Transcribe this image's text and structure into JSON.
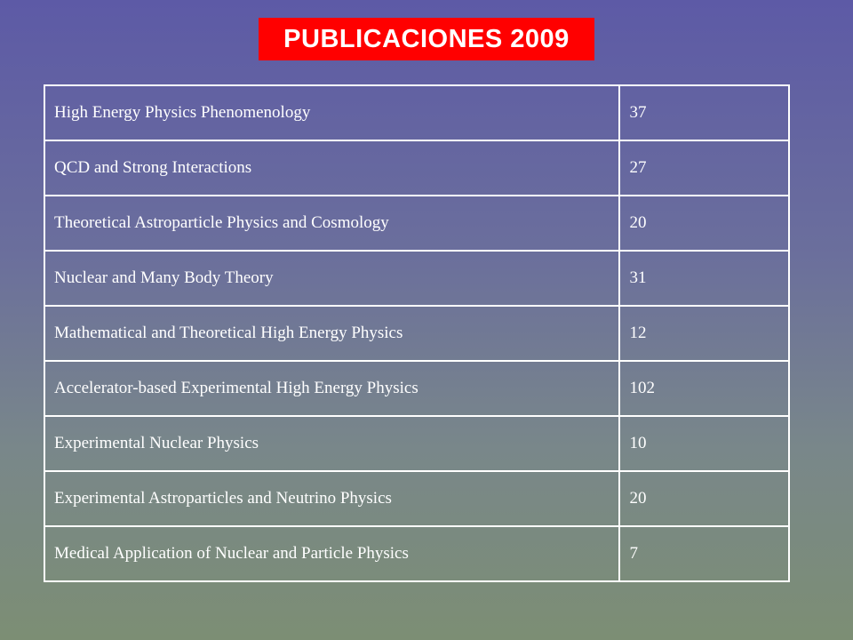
{
  "title": "PUBLICACIONES 2009",
  "rows": [
    {
      "area": "High Energy Physics Phenomenology",
      "count": "37"
    },
    {
      "area": "QCD and Strong Interactions",
      "count": "27"
    },
    {
      "area": "Theoretical Astroparticle Physics and Cosmology",
      "count": "20"
    },
    {
      "area": "Nuclear and Many Body Theory",
      "count": "31"
    },
    {
      "area": "Mathematical and Theoretical High Energy Physics",
      "count": "12"
    },
    {
      "area": "Accelerator-based Experimental High Energy Physics",
      "count": "102"
    },
    {
      "area": "Experimental Nuclear Physics",
      "count": "10"
    },
    {
      "area": "Experimental Astroparticles and Neutrino Physics",
      "count": "20"
    },
    {
      "area": "Medical Application of Nuclear and Particle Physics",
      "count": "7"
    }
  ],
  "colors": {
    "title_background": "#ff0000",
    "text": "#ffffff",
    "gradient_top": "#5d5aa6",
    "gradient_bottom": "#7c8e74"
  }
}
